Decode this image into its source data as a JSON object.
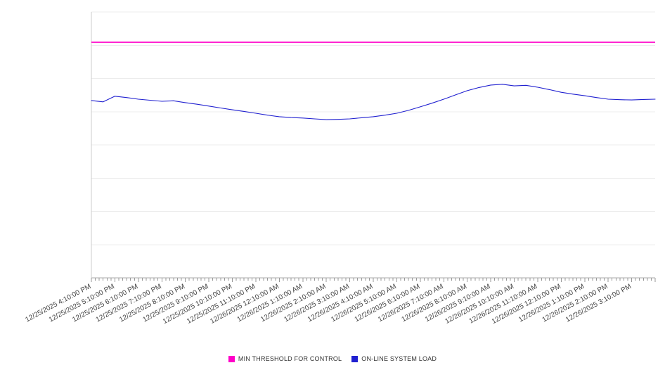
{
  "chart_data": {
    "type": "line",
    "title": "",
    "xlabel": "",
    "ylabel": "",
    "x_hours_span": 24,
    "ylim": [
      0,
      100
    ],
    "grid_divisions": 8,
    "grid_on": true,
    "legend_position": "bottom",
    "x_tick_labels": [
      "12/25/2025 4:10:00 PM",
      "12/25/2025 5:10:00 PM",
      "12/25/2025 6:10:00 PM",
      "12/25/2025 7:10:00 PM",
      "12/25/2025 8:10:00 PM",
      "12/25/2025 9:10:00 PM",
      "12/25/2025 10:10:00 PM",
      "12/25/2025 11:10:00 PM",
      "12/26/2025 12:10:00 AM",
      "12/26/2025 1:10:00 AM",
      "12/26/2025 2:10:00 AM",
      "12/26/2025 3:10:00 AM",
      "12/26/2025 4:10:00 AM",
      "12/26/2025 5:10:00 AM",
      "12/26/2025 6:10:00 AM",
      "12/26/2025 7:10:00 AM",
      "12/26/2025 8:10:00 AM",
      "12/26/2025 9:10:00 AM",
      "12/26/2025 10:10:00 AM",
      "12/26/2025 11:10:00 AM",
      "12/26/2025 12:10:00 PM",
      "12/26/2025 1:10:00 PM",
      "12/26/2025 2:10:00 PM",
      "12/26/2025 3:10:00 PM"
    ],
    "series": [
      {
        "name": "MIN THRESHOLD FOR CONTROL",
        "style": "threshold",
        "color": "#ff00c8",
        "value": 88.6
      },
      {
        "name": "ON-LINE SYSTEM LOAD",
        "style": "line",
        "color": "#2020d0",
        "x_step_hours": 0.5,
        "values": [
          66.7,
          66.2,
          68.3,
          67.8,
          67.2,
          66.8,
          66.4,
          66.6,
          65.9,
          65.3,
          64.6,
          63.9,
          63.2,
          62.6,
          61.9,
          61.2,
          60.6,
          60.3,
          60.1,
          59.8,
          59.5,
          59.6,
          59.8,
          60.2,
          60.6,
          61.2,
          61.9,
          63.0,
          64.3,
          65.7,
          67.2,
          68.8,
          70.4,
          71.6,
          72.5,
          72.8,
          72.2,
          72.4,
          71.7,
          70.8,
          69.8,
          69.1,
          68.5,
          67.8,
          67.2,
          67.0,
          66.9,
          67.1,
          67.2
        ]
      }
    ]
  },
  "legend": {
    "items": [
      {
        "label": "MIN THRESHOLD FOR CONTROL",
        "color": "#ff00c8"
      },
      {
        "label": "ON-LINE SYSTEM LOAD",
        "color": "#2020d0"
      }
    ]
  }
}
